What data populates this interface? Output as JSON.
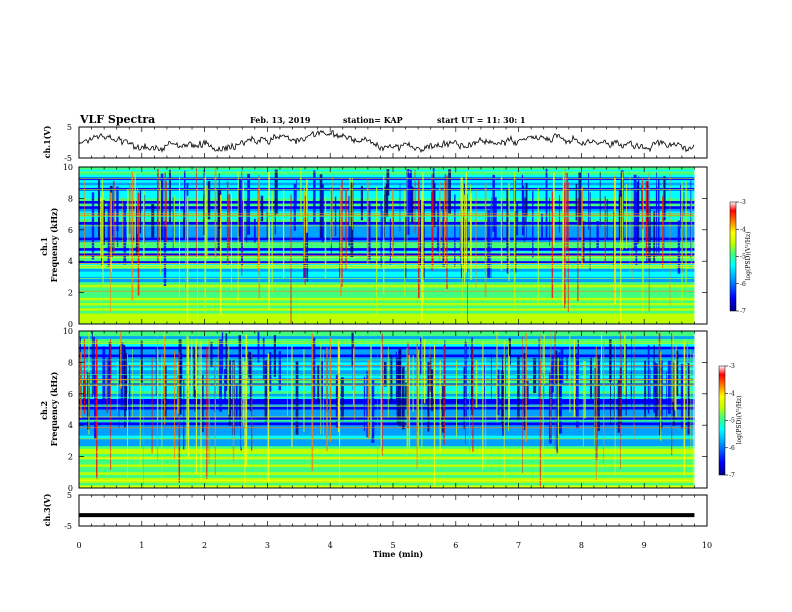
{
  "header": {
    "title": "VLF Spectra",
    "date": "Feb. 13, 2019",
    "station": "station= KAP",
    "start": "start  UT =   11: 30: 1"
  },
  "colors": {
    "colormap": [
      "#000080",
      "#0000ff",
      "#00a0ff",
      "#00ffff",
      "#40ff80",
      "#c0ff00",
      "#ffff00",
      "#ff8000",
      "#ff0000",
      "#ffffff"
    ],
    "trace": "#000000"
  },
  "chart_data": [
    {
      "type": "line",
      "panel": "ch1-waveform",
      "ylabel": "ch.1(V)",
      "ylim": [
        -5,
        5
      ],
      "yticks": [
        "5",
        "-5"
      ],
      "xlim": [
        0,
        10
      ]
    },
    {
      "type": "heatmap",
      "panel": "ch1-spectrogram",
      "ylabel": "ch.1\nFrequency (kHz)",
      "ylim": [
        0,
        10
      ],
      "yticks": [
        "0",
        "2",
        "4",
        "6",
        "8",
        "10"
      ],
      "xlim": [
        0,
        10
      ],
      "data_end_min": 9.8,
      "colorbar": {
        "label": "log(PSD)(V²/Hz)",
        "range": [
          -7,
          -3
        ],
        "ticks": [
          "-3",
          "-4",
          "-5",
          "-6",
          "-7"
        ]
      }
    },
    {
      "type": "heatmap",
      "panel": "ch2-spectrogram",
      "ylabel": "ch.2\nFrequency (kHz)",
      "ylim": [
        0,
        10
      ],
      "yticks": [
        "0",
        "2",
        "4",
        "6",
        "8",
        "10"
      ],
      "xlim": [
        0,
        10
      ],
      "data_end_min": 9.8,
      "colorbar": {
        "label": "log(PSD)(V²/Hz)",
        "range": [
          -7,
          -3
        ],
        "ticks": [
          "-3",
          "-4",
          "-5",
          "-6",
          "-7"
        ]
      }
    },
    {
      "type": "line",
      "panel": "ch3-waveform",
      "ylabel": "ch.3(V)",
      "ylim": [
        -5,
        5
      ],
      "yticks": [
        "5",
        "-5"
      ],
      "xlim": [
        0,
        10
      ],
      "xlabel": "Time (min)",
      "xticks": [
        "0",
        "1",
        "2",
        "3",
        "4",
        "5",
        "6",
        "7",
        "8",
        "9",
        "10"
      ],
      "constant_value": -1.0
    }
  ]
}
